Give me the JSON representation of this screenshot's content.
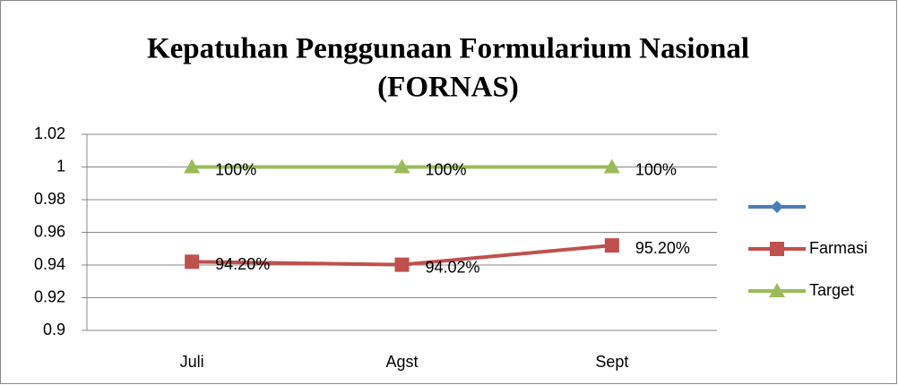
{
  "chart_data": {
    "type": "line",
    "title_lines": [
      "Kepatuhan Penggunaan Formularium Nasional",
      "(FORNAS)"
    ],
    "categories": [
      "Juli",
      "Agst",
      "Sept"
    ],
    "series": [
      {
        "color": "#4a7ebb",
        "marker": "diamond",
        "values": [
          null,
          null,
          null
        ]
      },
      {
        "name": "Farmasi",
        "color": "#c0504d",
        "marker": "square",
        "values": [
          0.942,
          0.9402,
          0.952
        ],
        "value_labels": [
          "94.20%",
          "94.02%",
          "95.20%"
        ]
      },
      {
        "name": "Target",
        "color": "#9bbb59",
        "marker": "triangle",
        "values": [
          1,
          1,
          1
        ],
        "value_labels": [
          "100%",
          "100%",
          "100%"
        ]
      }
    ],
    "ylim": [
      0.9,
      1.02
    ],
    "yticks": [
      0.9,
      0.92,
      0.94,
      0.96,
      0.98,
      1,
      1.02
    ],
    "grid": true,
    "legend": "right"
  }
}
